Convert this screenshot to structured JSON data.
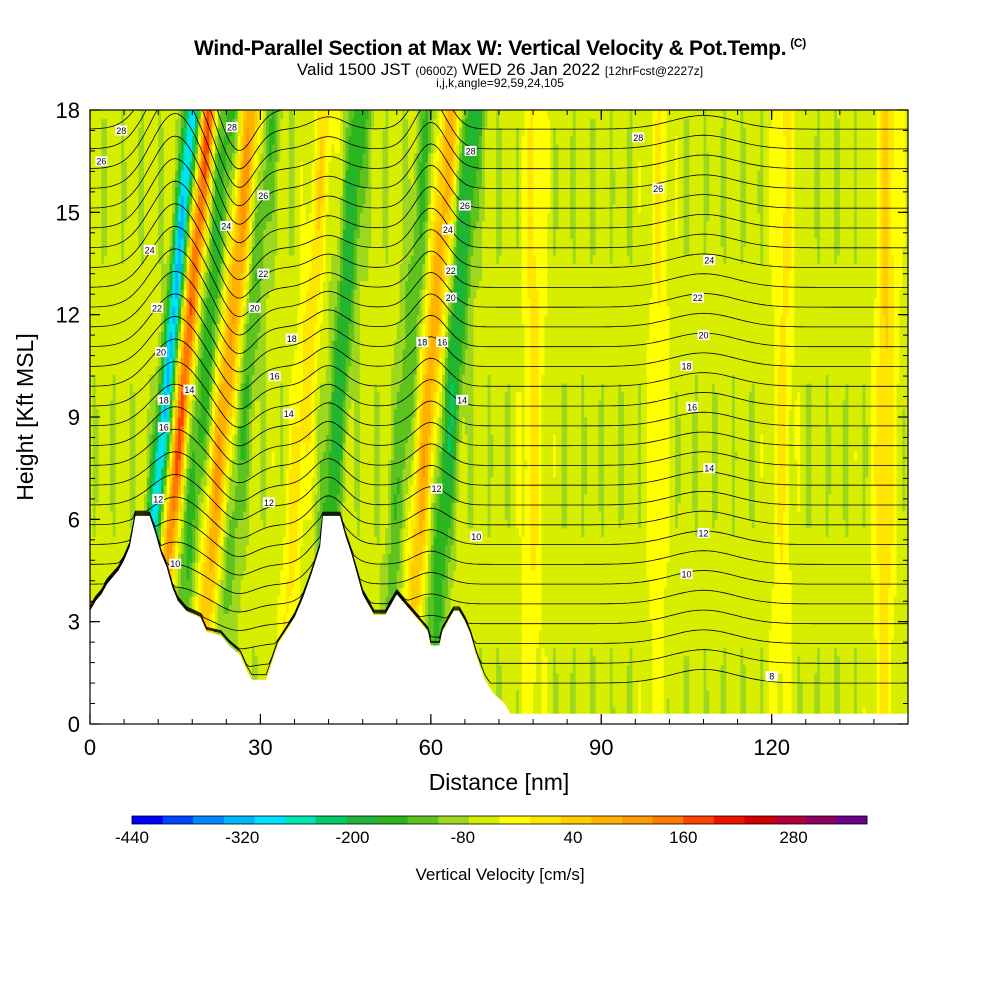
{
  "header": {
    "title": "Wind-Parallel Section at Max W: Vertical Velocity & Pot.Temp.",
    "title_tag": "(C)",
    "valid_prefix": "Valid 1500 JST",
    "valid_utc": "(0600Z)",
    "valid_date": "WED 26 Jan 2022",
    "valid_fcst": "[12hrFcst@2227z]",
    "indices": "i,j,k,angle=92,59,24,105"
  },
  "chart_data": {
    "type": "heatmap",
    "title": "Wind-Parallel Section at Max W: Vertical Velocity & Pot.Temp.",
    "xlabel": "Distance [nm]",
    "ylabel": "Height [Kft MSL]",
    "xlim": [
      0,
      144
    ],
    "ylim": [
      0,
      18
    ],
    "xticks": [
      "0",
      "30",
      "60",
      "90",
      "120"
    ],
    "xtick_values": [
      0,
      30,
      60,
      90,
      120
    ],
    "yticks": [
      "0",
      "3",
      "6",
      "9",
      "12",
      "15",
      "18"
    ],
    "ytick_values": [
      0,
      3,
      6,
      9,
      12,
      15,
      18
    ],
    "colorbar": {
      "label": "Vertical Velocity [cm/s]",
      "min": -440,
      "max": 360,
      "step": 40,
      "tick_labels": [
        "-440",
        "-320",
        "-200",
        "-80",
        "40",
        "160",
        "280"
      ],
      "tick_values": [
        -440,
        -320,
        -200,
        -80,
        40,
        160,
        280
      ],
      "colors": [
        "#0000ff",
        "#0045ff",
        "#0088ff",
        "#00b6ff",
        "#00e0ff",
        "#00e6b4",
        "#00cc6a",
        "#1fb43a",
        "#2db51e",
        "#5fc31e",
        "#9ed81e",
        "#d7ee00",
        "#ffff00",
        "#ffe600",
        "#ffcc00",
        "#ffb300",
        "#ff9900",
        "#ff7a00",
        "#ff4400",
        "#ee1100",
        "#d40000",
        "#b3003b",
        "#8c0060",
        "#6b008c"
      ]
    },
    "velocity_bands": [
      {
        "x": 12.5,
        "w": -300
      },
      {
        "x": 15.5,
        "w": 270
      },
      {
        "x": 19,
        "w": -120
      },
      {
        "x": 23,
        "w": 190
      },
      {
        "x": 26.5,
        "w": -90
      },
      {
        "x": 37,
        "w": 90
      },
      {
        "x": 43,
        "w": -140
      },
      {
        "x": 55,
        "w": -90
      },
      {
        "x": 59,
        "w": 170
      },
      {
        "x": 63,
        "w": -160
      },
      {
        "x": 78,
        "w": 80
      },
      {
        "x": 100,
        "w": 60
      },
      {
        "x": 122,
        "w": 70
      },
      {
        "x": 140,
        "w": 110
      }
    ],
    "isentropes": {
      "units": "K minus offset (plotted labels)",
      "labels": [
        "8",
        "10",
        "12",
        "14",
        "16",
        "18",
        "20",
        "22",
        "24",
        "26",
        "28"
      ],
      "label_points": [
        {
          "text": "28",
          "x": 5.5,
          "y": 17.4
        },
        {
          "text": "26",
          "x": 2,
          "y": 16.5
        },
        {
          "text": "24",
          "x": 10.5,
          "y": 13.9
        },
        {
          "text": "22",
          "x": 11.8,
          "y": 12.2
        },
        {
          "text": "20",
          "x": 12.5,
          "y": 10.9
        },
        {
          "text": "18",
          "x": 13,
          "y": 9.5
        },
        {
          "text": "16",
          "x": 13,
          "y": 8.7
        },
        {
          "text": "14",
          "x": 17.5,
          "y": 9.8
        },
        {
          "text": "12",
          "x": 12,
          "y": 6.6
        },
        {
          "text": "10",
          "x": 15,
          "y": 4.7
        },
        {
          "text": "28",
          "x": 25,
          "y": 17.5
        },
        {
          "text": "26",
          "x": 30.5,
          "y": 15.5
        },
        {
          "text": "24",
          "x": 24,
          "y": 14.6
        },
        {
          "text": "22",
          "x": 30.5,
          "y": 13.2
        },
        {
          "text": "20",
          "x": 29,
          "y": 12.2
        },
        {
          "text": "18",
          "x": 35.5,
          "y": 11.3
        },
        {
          "text": "16",
          "x": 32.5,
          "y": 10.2
        },
        {
          "text": "14",
          "x": 35,
          "y": 9.1
        },
        {
          "text": "12",
          "x": 31.5,
          "y": 6.5
        },
        {
          "text": "28",
          "x": 67,
          "y": 16.8
        },
        {
          "text": "26",
          "x": 66,
          "y": 15.2
        },
        {
          "text": "24",
          "x": 63,
          "y": 14.5
        },
        {
          "text": "22",
          "x": 63.5,
          "y": 13.3
        },
        {
          "text": "20",
          "x": 63.5,
          "y": 12.5
        },
        {
          "text": "16",
          "x": 62,
          "y": 11.2
        },
        {
          "text": "18",
          "x": 58.5,
          "y": 11.2
        },
        {
          "text": "14",
          "x": 65.5,
          "y": 9.5
        },
        {
          "text": "12",
          "x": 61,
          "y": 6.9
        },
        {
          "text": "10",
          "x": 68,
          "y": 5.5
        },
        {
          "text": "28",
          "x": 96.5,
          "y": 17.2
        },
        {
          "text": "26",
          "x": 100,
          "y": 15.7
        },
        {
          "text": "24",
          "x": 109,
          "y": 13.6
        },
        {
          "text": "22",
          "x": 107,
          "y": 12.5
        },
        {
          "text": "20",
          "x": 108,
          "y": 11.4
        },
        {
          "text": "18",
          "x": 105,
          "y": 10.5
        },
        {
          "text": "16",
          "x": 106,
          "y": 9.3
        },
        {
          "text": "14",
          "x": 109,
          "y": 7.5
        },
        {
          "text": "12",
          "x": 108,
          "y": 5.6
        },
        {
          "text": "10",
          "x": 105,
          "y": 4.4
        },
        {
          "text": "8",
          "x": 120,
          "y": 1.4
        }
      ]
    },
    "terrain_kft": [
      [
        0,
        3.3
      ],
      [
        1,
        3.6
      ],
      [
        2,
        3.8
      ],
      [
        3,
        4.1
      ],
      [
        4,
        4.3
      ],
      [
        5,
        4.5
      ],
      [
        6,
        4.8
      ],
      [
        7,
        5.2
      ],
      [
        8,
        6.1
      ],
      [
        10.5,
        6.1
      ],
      [
        11.5,
        5.6
      ],
      [
        12.5,
        5.0
      ],
      [
        13.5,
        4.6
      ],
      [
        14.5,
        4.0
      ],
      [
        15.5,
        3.6
      ],
      [
        17,
        3.3
      ],
      [
        19.5,
        3.1
      ],
      [
        20.5,
        2.7
      ],
      [
        23,
        2.6
      ],
      [
        24.5,
        2.3
      ],
      [
        26.5,
        2.0
      ],
      [
        27.5,
        1.6
      ],
      [
        28.5,
        1.3
      ],
      [
        31,
        1.3
      ],
      [
        32,
        1.8
      ],
      [
        33,
        2.3
      ],
      [
        34.5,
        2.7
      ],
      [
        36,
        3.1
      ],
      [
        37.5,
        3.7
      ],
      [
        39,
        4.4
      ],
      [
        40.5,
        5.2
      ],
      [
        41,
        6.1
      ],
      [
        44,
        6.1
      ],
      [
        45,
        5.5
      ],
      [
        46,
        5.0
      ],
      [
        47,
        4.4
      ],
      [
        48,
        3.8
      ],
      [
        49,
        3.5
      ],
      [
        50,
        3.2
      ],
      [
        52,
        3.2
      ],
      [
        53,
        3.5
      ],
      [
        54,
        3.8
      ],
      [
        55,
        3.6
      ],
      [
        56.5,
        3.3
      ],
      [
        58,
        3.0
      ],
      [
        59.5,
        2.7
      ],
      [
        60,
        2.3
      ],
      [
        61.5,
        2.3
      ],
      [
        62,
        2.7
      ],
      [
        63,
        3.0
      ],
      [
        64,
        3.3
      ],
      [
        65,
        3.3
      ],
      [
        66,
        3.0
      ],
      [
        67,
        2.6
      ],
      [
        68,
        2.0
      ],
      [
        69.5,
        1.3
      ],
      [
        71,
        0.9
      ],
      [
        73,
        0.6
      ],
      [
        74,
        0.3
      ],
      [
        76,
        0.3
      ],
      [
        144,
        0.3
      ]
    ]
  }
}
